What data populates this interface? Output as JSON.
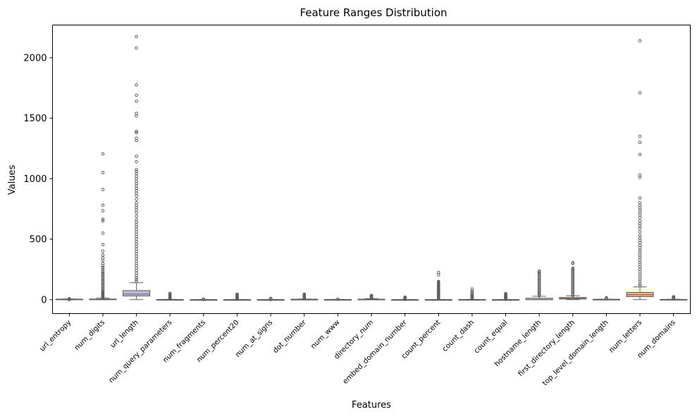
{
  "chart_data": {
    "type": "box",
    "title": "Feature Ranges Distribution",
    "xlabel": "Features",
    "ylabel": "Values",
    "ylim": [
      -115,
      2270
    ],
    "yticks": [
      0,
      500,
      1000,
      1500,
      2000
    ],
    "grid": false,
    "categories": [
      "url_entropy",
      "num_digits",
      "url_length",
      "num_query_parameters",
      "num_fragments",
      "num_percent20",
      "num_at_signs",
      "dot_number",
      "num_www",
      "directory_num",
      "embed_domain_number",
      "count_percent",
      "count_dash",
      "count_equal",
      "hostname_length",
      "first_directory_length",
      "top_level_domain_length",
      "num_letters",
      "num_domains"
    ],
    "box_colors": [
      "#8dd3c7",
      "#ffffb3",
      "#bebada",
      "#fb8072",
      "#80b1d3",
      "#fdb462",
      "#b3de69",
      "#fccde5",
      "#d9d9d9",
      "#bc80bd",
      "#ccebc5",
      "#ffed6f",
      "#8dd3c7",
      "#ffffb3",
      "#bebada",
      "#fb8072",
      "#80b1d3",
      "#fdb462",
      "#b3de69"
    ],
    "boxes": [
      {
        "whislo": 2,
        "q1": 3.5,
        "med": 4,
        "q3": 4.5,
        "whishi": 6,
        "fliers": [
          0,
          1,
          7,
          8
        ]
      },
      {
        "whislo": 0,
        "q1": 0,
        "med": 1,
        "q3": 5,
        "whishi": 12,
        "fliers": [
          15,
          18,
          22,
          26,
          30,
          35,
          40,
          45,
          50,
          55,
          60,
          65,
          70,
          80,
          90,
          100,
          110,
          120,
          130,
          140,
          150,
          160,
          170,
          180,
          190,
          200,
          210,
          220,
          235,
          250,
          265,
          280,
          300,
          325,
          345,
          370,
          400,
          455,
          550,
          650,
          665,
          735,
          780,
          910,
          1050,
          1205
        ]
      },
      {
        "whislo": 0,
        "q1": 30,
        "med": 45,
        "q3": 75,
        "whishi": 140,
        "fliers": [
          150,
          165,
          180,
          200,
          220,
          240,
          260,
          280,
          300,
          320,
          340,
          360,
          380,
          400,
          420,
          440,
          460,
          480,
          500,
          520,
          540,
          560,
          580,
          600,
          620,
          640,
          660,
          690,
          720,
          740,
          760,
          780,
          800,
          830,
          860,
          880,
          900,
          920,
          940,
          960,
          980,
          1000,
          1020,
          1040,
          1060,
          1075,
          1140,
          1185,
          1315,
          1335,
          1380,
          1390,
          1520,
          1540,
          1640,
          1690,
          1775,
          2080,
          2175
        ]
      },
      {
        "whislo": 0,
        "q1": 0,
        "med": 0,
        "q3": 1,
        "whishi": 2,
        "fliers": [
          4,
          7,
          10,
          14,
          18,
          22,
          27,
          32,
          38,
          45,
          52
        ]
      },
      {
        "whislo": 0,
        "q1": 0,
        "med": 0,
        "q3": 0,
        "whishi": 0,
        "fliers": [
          1,
          2,
          3,
          4
        ]
      },
      {
        "whislo": 0,
        "q1": 0,
        "med": 0,
        "q3": 0,
        "whishi": 0,
        "fliers": [
          2,
          5,
          8,
          12,
          16,
          20,
          25,
          30,
          35,
          40,
          45
        ]
      },
      {
        "whislo": 0,
        "q1": 0,
        "med": 0,
        "q3": 0,
        "whishi": 0,
        "fliers": [
          1,
          2,
          4,
          6,
          8,
          10
        ]
      },
      {
        "whislo": 1,
        "q1": 2,
        "med": 3,
        "q3": 3,
        "whishi": 5,
        "fliers": [
          7,
          10,
          14,
          18,
          22,
          26,
          30,
          34,
          38,
          42,
          45
        ]
      },
      {
        "whislo": 0,
        "q1": 0,
        "med": 0,
        "q3": 1,
        "whishi": 2,
        "fliers": [
          3,
          4
        ]
      },
      {
        "whislo": 0,
        "q1": 1,
        "med": 2,
        "q3": 4,
        "whishi": 8,
        "fliers": [
          10,
          14,
          18,
          22,
          26,
          30,
          35
        ]
      },
      {
        "whislo": 0,
        "q1": 0,
        "med": 0,
        "q3": 0,
        "whishi": 0,
        "fliers": [
          1,
          3,
          6,
          9,
          12,
          16,
          20
        ]
      },
      {
        "whislo": 0,
        "q1": 0,
        "med": 0,
        "q3": 0,
        "whishi": 0,
        "fliers": [
          5,
          10,
          15,
          20,
          25,
          30,
          35,
          40,
          45,
          50,
          55,
          60,
          65,
          70,
          75,
          80,
          85,
          90,
          95,
          100,
          105,
          110,
          115,
          120,
          125,
          130,
          135,
          140,
          145,
          150,
          205,
          225
        ]
      },
      {
        "whislo": 0,
        "q1": 0,
        "med": 0,
        "q3": 1,
        "whishi": 2,
        "fliers": [
          4,
          8,
          12,
          18,
          25,
          32,
          40,
          50,
          60,
          70,
          88
        ]
      },
      {
        "whislo": 0,
        "q1": 0,
        "med": 0,
        "q3": 0,
        "whishi": 0,
        "fliers": [
          2,
          6,
          10,
          15,
          20,
          25,
          30,
          35,
          40,
          45,
          50
        ]
      },
      {
        "whislo": 0,
        "q1": 0,
        "med": 0,
        "q3": 12,
        "whishi": 28,
        "fliers": [
          32,
          40,
          50,
          60,
          70,
          80,
          90,
          100,
          110,
          120,
          130,
          140,
          150,
          160,
          170,
          180,
          190,
          200,
          210,
          220,
          230,
          235
        ]
      },
      {
        "whislo": 0,
        "q1": 5,
        "med": 10,
        "q3": 18,
        "whishi": 32,
        "fliers": [
          35,
          45,
          55,
          65,
          75,
          85,
          95,
          105,
          115,
          125,
          135,
          145,
          155,
          165,
          175,
          185,
          195,
          205,
          215,
          225,
          235,
          245,
          255,
          260,
          300,
          305
        ]
      },
      {
        "whislo": 0,
        "q1": 2,
        "med": 2,
        "q3": 3,
        "whishi": 4,
        "fliers": [
          6,
          9,
          12,
          15
        ]
      },
      {
        "whislo": 0,
        "q1": 25,
        "med": 40,
        "q3": 60,
        "whishi": 105,
        "fliers": [
          115,
          130,
          150,
          170,
          190,
          210,
          230,
          250,
          270,
          290,
          310,
          330,
          350,
          370,
          390,
          410,
          430,
          450,
          470,
          490,
          510,
          530,
          560,
          590,
          610,
          630,
          650,
          680,
          700,
          720,
          740,
          760,
          780,
          800,
          840,
          1010,
          1030,
          1200,
          1300,
          1350,
          1710,
          2140
        ]
      },
      {
        "whislo": 0,
        "q1": 1,
        "med": 1,
        "q3": 2,
        "whishi": 3,
        "fliers": [
          5,
          8,
          11,
          15,
          20,
          24
        ]
      }
    ]
  }
}
